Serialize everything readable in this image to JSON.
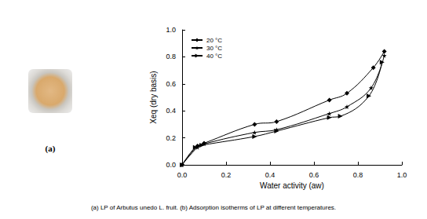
{
  "chart_data": {
    "type": "line",
    "x_label": "Water activity (aw)",
    "y_label": "Xeq (dry basis)",
    "xlim": [
      0,
      1.0
    ],
    "xticks": [
      {
        "value": 0,
        "label": "0.0"
      },
      {
        "value": 0.2,
        "label": "0.2"
      },
      {
        "value": 0.4,
        "label": "0.4"
      },
      {
        "value": 0.6,
        "label": "0.6"
      },
      {
        "value": 0.8,
        "label": "0.8"
      },
      {
        "value": 1.0,
        "label": "1.0"
      }
    ],
    "ylim": [
      0,
      1.0
    ],
    "yticks": [
      {
        "value": 0,
        "label": "0.0"
      },
      {
        "value": 0.2,
        "label": "0.2"
      },
      {
        "value": 0.4,
        "label": "0.4"
      },
      {
        "value": 0.6,
        "label": "0.6"
      },
      {
        "value": 0.8,
        "label": "0.8"
      },
      {
        "value": 1.0,
        "label": "1.0"
      }
    ],
    "grid": false,
    "legend": "top-left",
    "series": [
      {
        "name": "20 °C",
        "color": "#000000",
        "marker": "diamond",
        "line_style": "solid",
        "x": [
          0,
          0.07,
          0.1,
          0.33,
          0.43,
          0.67,
          0.75,
          0.87,
          0.92
        ],
        "values": [
          0,
          0.14,
          0.16,
          0.3,
          0.32,
          0.48,
          0.53,
          0.72,
          0.84
        ]
      },
      {
        "name": "30 °C",
        "color": "#000000",
        "marker": "star",
        "line_style": "solid",
        "x": [
          0,
          0.07,
          0.1,
          0.33,
          0.43,
          0.67,
          0.75,
          0.86,
          0.92
        ],
        "values": [
          0,
          0.13,
          0.155,
          0.24,
          0.26,
          0.38,
          0.43,
          0.57,
          0.81
        ]
      },
      {
        "name": "40 °C",
        "color": "#000000",
        "marker": "triangle-right",
        "line_style": "solid",
        "x": [
          0,
          0.06,
          0.09,
          0.33,
          0.43,
          0.67,
          0.72,
          0.85,
          0.91
        ],
        "values": [
          0,
          0.13,
          0.145,
          0.21,
          0.25,
          0.35,
          0.36,
          0.51,
          0.76
        ]
      }
    ]
  },
  "figure": {
    "panel_label": "(a)",
    "caption": "(a) LP of Arbutus unedo L. fruit. (b) Adsorption isotherms of LP at different temperatures."
  }
}
